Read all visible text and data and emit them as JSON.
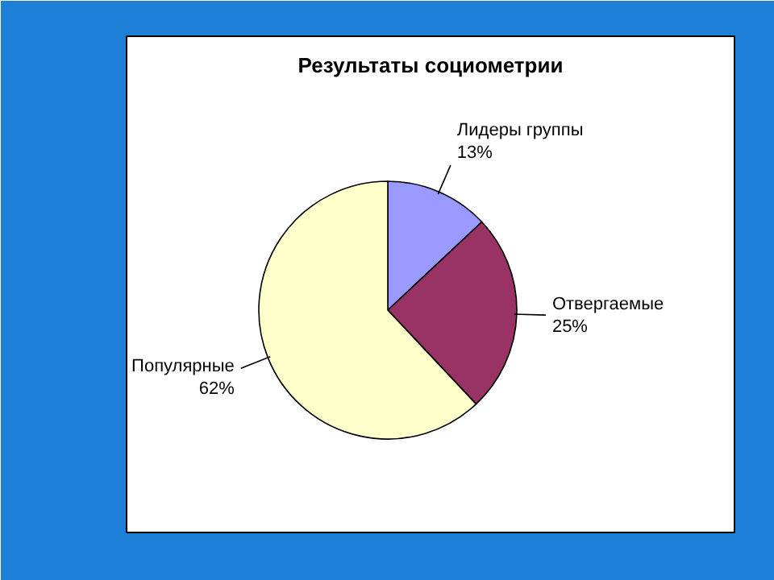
{
  "chart_data": {
    "type": "pie",
    "title": "Результаты социометрии",
    "categories": [
      "Лидеры группы",
      "Отвергаемые",
      "Популярные"
    ],
    "values": [
      13,
      25,
      62
    ],
    "colors": [
      "#9999ff",
      "#993366",
      "#ffffcc"
    ],
    "value_labels": [
      "13%",
      "25%",
      "62%"
    ]
  }
}
